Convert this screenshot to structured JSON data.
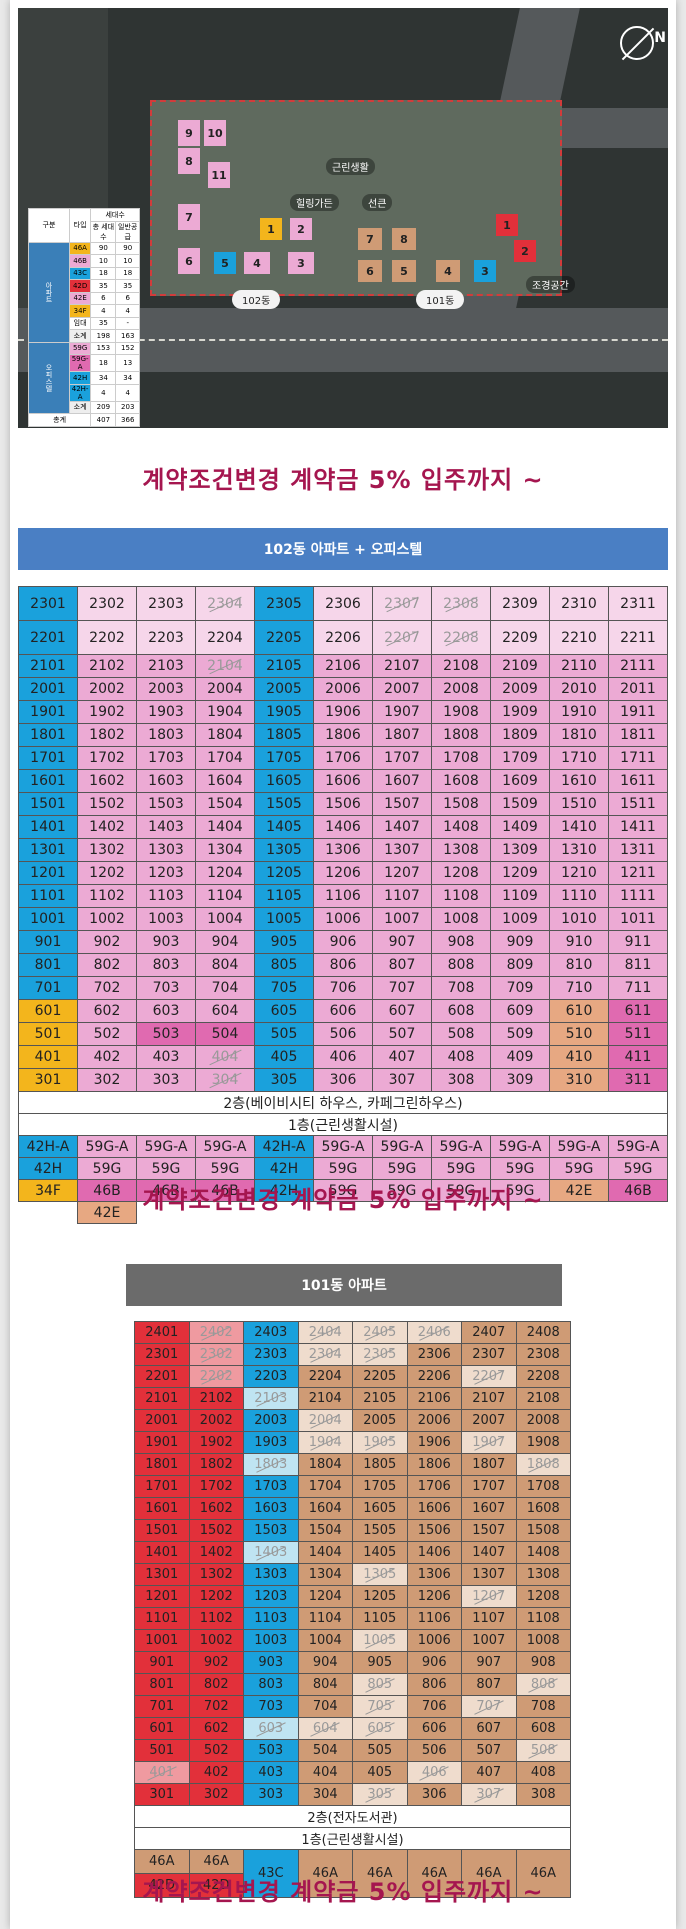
{
  "headline": "계약조건변경 계약금 5% 입주까지 ~",
  "site_plan": {
    "compass": "N",
    "labels": {
      "b102": "102동",
      "b101": "101동",
      "healing_garden": "힐링가든",
      "sunken": "선큰",
      "commercial": "근린생활",
      "garden1": "조경공간"
    },
    "b102_units": [
      "9",
      "10",
      "8",
      "11",
      "7",
      "6",
      "5",
      "4",
      "3",
      "1",
      "2"
    ],
    "b101_units": [
      "7",
      "8",
      "6",
      "5",
      "4",
      "3",
      "1",
      "2"
    ],
    "legend": {
      "head": [
        "구분",
        "타입",
        "세대수"
      ],
      "sub": [
        "총 세대수",
        "일반공급"
      ],
      "groups": [
        "아파트",
        "오피스텔"
      ],
      "rows": [
        [
          "46A",
          "90",
          "90"
        ],
        [
          "46B",
          "10",
          "10"
        ],
        [
          "43C",
          "18",
          "18"
        ],
        [
          "42D",
          "35",
          "35"
        ],
        [
          "42E",
          "6",
          "6"
        ],
        [
          "34F",
          "4",
          "4"
        ],
        [
          "임대",
          "35",
          "-"
        ],
        [
          "소계",
          "198",
          "163"
        ],
        [
          "59G",
          "153",
          "152"
        ],
        [
          "59G-A",
          "18",
          "13"
        ],
        [
          "42H",
          "34",
          "34"
        ],
        [
          "42H-A",
          "4",
          "4"
        ],
        [
          "소계",
          "209",
          "203"
        ],
        [
          "총계",
          "407",
          "366"
        ]
      ]
    }
  },
  "b102": {
    "title": "102동 아파트 + 오피스텔",
    "floor2": "2층(베이비시티 하우스, 카페그린하우스)",
    "floor1": "1층(근린생활시설)",
    "types": [
      [
        "42H-A",
        "59G-A",
        "59G-A",
        "59G-A",
        "42H-A",
        "59G-A",
        "59G-A",
        "59G-A",
        "59G-A",
        "59G-A",
        "59G-A"
      ],
      [
        "42H",
        "59G",
        "59G",
        "59G",
        "42H",
        "59G",
        "59G",
        "59G",
        "59G",
        "59G",
        "59G"
      ],
      [
        "34F",
        "46B",
        "46B",
        "46B",
        "42H",
        "59G",
        "59G",
        "59G",
        "59G",
        "42E",
        "46B"
      ],
      [
        "",
        "42E",
        "",
        "",
        "",
        "",
        "",
        "",
        "",
        "",
        ""
      ]
    ]
  },
  "b101": {
    "title": "101동 아파트",
    "floor2": "2층(전자도서관)",
    "floor1": "1층(근린생활시설)",
    "types": [
      [
        "46A",
        "46A",
        "43C",
        "46A",
        "46A",
        "46A",
        "46A",
        "46A"
      ],
      [
        "42D",
        "42D"
      ]
    ]
  },
  "colors": {
    "accent": "#a5164f",
    "header102": "#4a7fc4",
    "header101": "#6b6b6b",
    "blue": "#1aa1dc",
    "pink": "#ecaad4",
    "red": "#e2303a",
    "tan": "#cf9b75"
  }
}
